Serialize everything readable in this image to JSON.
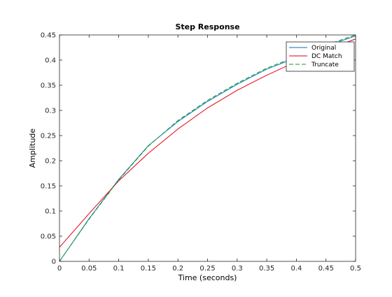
{
  "chart_data": {
    "type": "line",
    "title": "Step Response",
    "xlabel": "Time (seconds)",
    "ylabel": "Amplitude",
    "xlim": [
      0,
      0.5
    ],
    "ylim": [
      0,
      0.45
    ],
    "xticks": [
      "0",
      "0.05",
      "0.1",
      "0.15",
      "0.2",
      "0.25",
      "0.3",
      "0.35",
      "0.4",
      "0.45",
      "0.5"
    ],
    "yticks": [
      "0",
      "0.05",
      "0.1",
      "0.15",
      "0.2",
      "0.25",
      "0.3",
      "0.35",
      "0.4",
      "0.45"
    ],
    "grid": false,
    "legend_position": "top-right",
    "x": [
      0,
      0.05,
      0.1,
      0.15,
      0.2,
      0.25,
      0.3,
      0.35,
      0.4,
      0.45,
      0.5
    ],
    "series": [
      {
        "name": "Original",
        "color": "#0072bd",
        "style": "solid",
        "values": [
          0,
          0.085,
          0.163,
          0.23,
          0.278,
          0.318,
          0.352,
          0.382,
          0.405,
          0.428,
          0.448
        ]
      },
      {
        "name": "DC Match",
        "color": "#e0000f",
        "style": "solid",
        "values": [
          0.028,
          0.095,
          0.16,
          0.215,
          0.263,
          0.305,
          0.34,
          0.37,
          0.397,
          0.42,
          0.442
        ]
      },
      {
        "name": "Truncate",
        "color": "#1a9a1a",
        "style": "dashed",
        "values": [
          0,
          0.084,
          0.162,
          0.229,
          0.28,
          0.32,
          0.354,
          0.384,
          0.407,
          0.43,
          0.45
        ]
      }
    ]
  }
}
